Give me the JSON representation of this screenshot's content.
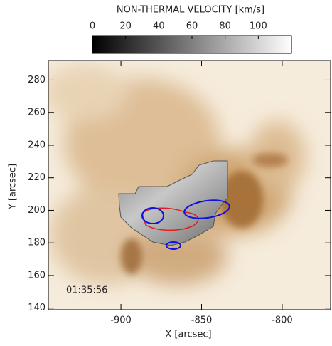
{
  "chart_data": {
    "type": "image",
    "colorbar": {
      "label": "NON-THERMAL VELOCITY [km/s]",
      "lim": [
        0,
        120
      ],
      "ticks": [
        0,
        20,
        40,
        60,
        80,
        100
      ]
    },
    "xlabel": "X [arcsec]",
    "ylabel": "Y [arcsec]",
    "annotation": "01:35:56",
    "xlim": [
      -945,
      -770
    ],
    "ylim": [
      139,
      292
    ],
    "xticks": [
      -900,
      -850,
      -800
    ],
    "yticks": [
      140,
      160,
      180,
      200,
      220,
      240,
      260,
      280
    ]
  }
}
